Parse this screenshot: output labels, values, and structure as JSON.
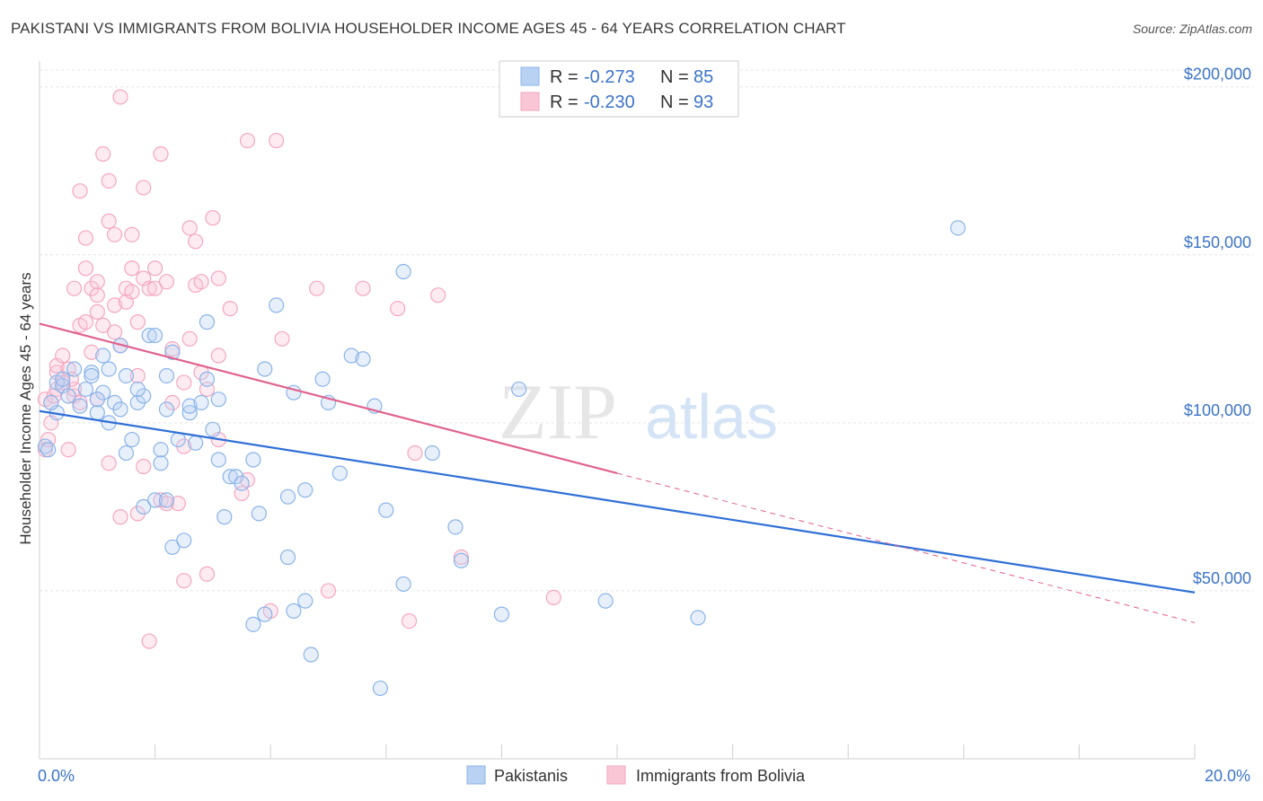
{
  "chart_data": {
    "type": "scatter",
    "title": "PAKISTANI VS IMMIGRANTS FROM BOLIVIA HOUSEHOLDER INCOME AGES 45 - 64 YEARS CORRELATION CHART",
    "source": "Source: ZipAtlas.com",
    "xlabel": "",
    "ylabel": "Householder Income Ages 45 - 64 years",
    "xlim": [
      0,
      20
    ],
    "ylim": [
      0,
      205000
    ],
    "x_tick_labels": [
      "0.0%",
      "20.0%"
    ],
    "y_ticks": [
      {
        "value": 50000,
        "label": "$50,000"
      },
      {
        "value": 100000,
        "label": "$100,000"
      },
      {
        "value": 150000,
        "label": "$150,000"
      },
      {
        "value": 200000,
        "label": "$200,000"
      }
    ],
    "grid": "on",
    "watermark": "ZIPatlas",
    "legend": {
      "placement": "top-center",
      "entries": [
        {
          "r_label": "R =",
          "r_value": "-0.273",
          "n_label": "N =",
          "n_value": "85"
        },
        {
          "r_label": "R =",
          "r_value": "-0.230",
          "n_label": "N =",
          "n_value": "93"
        }
      ]
    },
    "series": [
      {
        "name": "Pakistanis",
        "color": "#8ab4e8",
        "line_color": "#2f6fd6",
        "trend": {
          "x0": 0,
          "y0": 103500,
          "x1": 20,
          "y1": 49500
        },
        "points": [
          [
            0.1,
            93000
          ],
          [
            0.3,
            103000
          ],
          [
            0.3,
            112000
          ],
          [
            0.4,
            111000
          ],
          [
            0.5,
            108000
          ],
          [
            0.6,
            116000
          ],
          [
            0.7,
            105000
          ],
          [
            0.8,
            110000
          ],
          [
            0.9,
            115000
          ],
          [
            0.9,
            114000
          ],
          [
            1.0,
            103000
          ],
          [
            1.1,
            109000
          ],
          [
            1.0,
            107000
          ],
          [
            1.2,
            100000
          ],
          [
            1.1,
            120000
          ],
          [
            1.2,
            116000
          ],
          [
            1.3,
            106000
          ],
          [
            1.4,
            104000
          ],
          [
            1.4,
            123000
          ],
          [
            1.5,
            114000
          ],
          [
            1.5,
            91000
          ],
          [
            1.6,
            95000
          ],
          [
            1.7,
            106000
          ],
          [
            1.8,
            108000
          ],
          [
            1.9,
            126000
          ],
          [
            2.0,
            126000
          ],
          [
            1.8,
            75000
          ],
          [
            2.0,
            77000
          ],
          [
            2.1,
            88000
          ],
          [
            2.1,
            92000
          ],
          [
            2.2,
            114000
          ],
          [
            2.2,
            77000
          ],
          [
            2.2,
            104000
          ],
          [
            2.3,
            121000
          ],
          [
            2.3,
            63000
          ],
          [
            2.5,
            65000
          ],
          [
            2.4,
            95000
          ],
          [
            2.6,
            103000
          ],
          [
            2.6,
            105000
          ],
          [
            2.8,
            106000
          ],
          [
            2.7,
            94000
          ],
          [
            2.9,
            113000
          ],
          [
            2.9,
            130000
          ],
          [
            3.0,
            98000
          ],
          [
            3.1,
            107000
          ],
          [
            3.1,
            89000
          ],
          [
            3.2,
            72000
          ],
          [
            3.3,
            84000
          ],
          [
            3.4,
            84000
          ],
          [
            3.5,
            82000
          ],
          [
            3.7,
            89000
          ],
          [
            3.8,
            73000
          ],
          [
            3.9,
            116000
          ],
          [
            3.7,
            40000
          ],
          [
            3.9,
            43000
          ],
          [
            4.1,
            135000
          ],
          [
            4.3,
            78000
          ],
          [
            4.3,
            60000
          ],
          [
            4.4,
            109000
          ],
          [
            4.4,
            44000
          ],
          [
            4.6,
            80000
          ],
          [
            4.6,
            47000
          ],
          [
            4.7,
            31000
          ],
          [
            4.9,
            113000
          ],
          [
            5.0,
            106000
          ],
          [
            5.2,
            85000
          ],
          [
            5.4,
            120000
          ],
          [
            5.6,
            119000
          ],
          [
            5.8,
            105000
          ],
          [
            5.9,
            21000
          ],
          [
            6.0,
            74000
          ],
          [
            6.3,
            145000
          ],
          [
            6.3,
            52000
          ],
          [
            6.8,
            91000
          ],
          [
            7.2,
            69000
          ],
          [
            7.3,
            59000
          ],
          [
            8.0,
            43000
          ],
          [
            8.3,
            110000
          ],
          [
            9.8,
            47000
          ],
          [
            11.4,
            42000
          ],
          [
            15.9,
            158000
          ],
          [
            0.2,
            106000
          ],
          [
            0.4,
            113000
          ],
          [
            1.7,
            110000
          ],
          [
            0.15,
            92000
          ]
        ]
      },
      {
        "name": "Immigrants from Bolivia",
        "color": "#f4a6c0",
        "line_color": "#e0628e",
        "trend": {
          "x0": 0,
          "y0": 129500,
          "x1": 10,
          "y1": 85000
        },
        "trend_dashed": {
          "x0": 10,
          "y0": 85000,
          "x1": 20,
          "y1": 40500
        },
        "points": [
          [
            0.1,
            92000
          ],
          [
            0.1,
            107000
          ],
          [
            0.2,
            100000
          ],
          [
            0.2,
            106000
          ],
          [
            0.3,
            110000
          ],
          [
            0.3,
            115000
          ],
          [
            0.3,
            117000
          ],
          [
            0.4,
            120000
          ],
          [
            0.4,
            112000
          ],
          [
            0.5,
            92000
          ],
          [
            0.5,
            116000
          ],
          [
            0.6,
            108000
          ],
          [
            0.6,
            110000
          ],
          [
            0.6,
            140000
          ],
          [
            0.7,
            106000
          ],
          [
            0.7,
            169000
          ],
          [
            0.7,
            129000
          ],
          [
            0.8,
            146000
          ],
          [
            0.8,
            155000
          ],
          [
            0.8,
            130000
          ],
          [
            0.9,
            121000
          ],
          [
            0.9,
            140000
          ],
          [
            1.0,
            142000
          ],
          [
            1.0,
            138000
          ],
          [
            1.0,
            133000
          ],
          [
            1.0,
            107000
          ],
          [
            1.1,
            180000
          ],
          [
            1.1,
            129000
          ],
          [
            1.2,
            172000
          ],
          [
            1.2,
            160000
          ],
          [
            1.2,
            88000
          ],
          [
            1.3,
            156000
          ],
          [
            1.3,
            135000
          ],
          [
            1.3,
            127000
          ],
          [
            1.4,
            123000
          ],
          [
            1.4,
            197000
          ],
          [
            1.4,
            72000
          ],
          [
            1.5,
            136000
          ],
          [
            1.5,
            140000
          ],
          [
            1.6,
            146000
          ],
          [
            1.6,
            156000
          ],
          [
            1.6,
            139000
          ],
          [
            1.7,
            130000
          ],
          [
            1.7,
            73000
          ],
          [
            1.7,
            114000
          ],
          [
            1.8,
            170000
          ],
          [
            1.8,
            143000
          ],
          [
            1.8,
            87000
          ],
          [
            1.9,
            35000
          ],
          [
            1.9,
            140000
          ],
          [
            2.0,
            146000
          ],
          [
            2.0,
            140000
          ],
          [
            2.1,
            180000
          ],
          [
            2.1,
            77000
          ],
          [
            2.2,
            76000
          ],
          [
            2.2,
            142000
          ],
          [
            2.3,
            106000
          ],
          [
            2.3,
            122000
          ],
          [
            2.4,
            76000
          ],
          [
            2.5,
            53000
          ],
          [
            2.5,
            93000
          ],
          [
            2.5,
            112000
          ],
          [
            2.6,
            125000
          ],
          [
            2.6,
            158000
          ],
          [
            2.7,
            154000
          ],
          [
            2.7,
            141000
          ],
          [
            2.8,
            142000
          ],
          [
            2.8,
            115000
          ],
          [
            2.9,
            55000
          ],
          [
            2.9,
            110000
          ],
          [
            3.0,
            161000
          ],
          [
            3.1,
            120000
          ],
          [
            3.1,
            95000
          ],
          [
            3.1,
            143000
          ],
          [
            3.3,
            134000
          ],
          [
            3.5,
            79000
          ],
          [
            3.6,
            83000
          ],
          [
            3.6,
            184000
          ],
          [
            4.2,
            125000
          ],
          [
            4.1,
            184000
          ],
          [
            4.0,
            44000
          ],
          [
            4.8,
            140000
          ],
          [
            5.0,
            50000
          ],
          [
            5.6,
            140000
          ],
          [
            6.2,
            134000
          ],
          [
            6.4,
            41000
          ],
          [
            6.5,
            91000
          ],
          [
            6.9,
            138000
          ],
          [
            7.3,
            60000
          ],
          [
            8.9,
            48000
          ],
          [
            0.15,
            95000
          ],
          [
            0.25,
            108000
          ],
          [
            0.55,
            113000
          ]
        ]
      }
    ]
  }
}
